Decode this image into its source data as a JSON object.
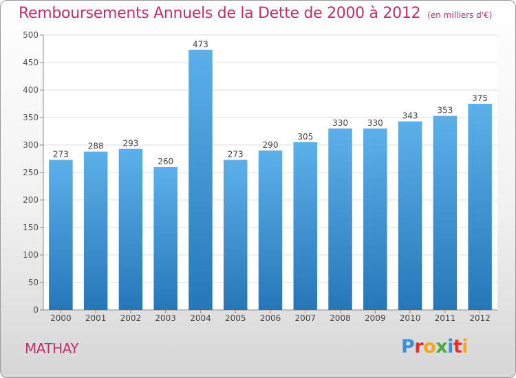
{
  "header": {
    "title": "Remboursements Annuels de la Dette de 2000 à 2012",
    "subtitle": "(en milliers d'€)"
  },
  "footer": {
    "commune": "MATHAY",
    "logo_text": "Proxiti",
    "logo_colors": [
      "#3b8fd8",
      "#e2312d",
      "#f2a623",
      "#4bab3e",
      "#3b8fd8",
      "#e2312d",
      "#f2a623"
    ]
  },
  "colors": {
    "bar_light": "#5cb0ea",
    "bar_dark": "#2677b8",
    "title": "#c0306b",
    "grid": "#dedede"
  },
  "chart_data": {
    "type": "bar",
    "categories": [
      "2000",
      "2001",
      "2002",
      "2003",
      "2004",
      "2005",
      "2006",
      "2007",
      "2008",
      "2009",
      "2010",
      "2011",
      "2012"
    ],
    "values": [
      273,
      288,
      293,
      260,
      473,
      273,
      290,
      305,
      330,
      330,
      343,
      353,
      375
    ],
    "ylim": [
      0,
      500
    ],
    "yticks": [
      0,
      50,
      100,
      150,
      200,
      250,
      300,
      350,
      400,
      450,
      500
    ],
    "grid": true,
    "title": "Remboursements Annuels de la Dette de 2000 à 2012",
    "xlabel": "",
    "ylabel": ""
  }
}
